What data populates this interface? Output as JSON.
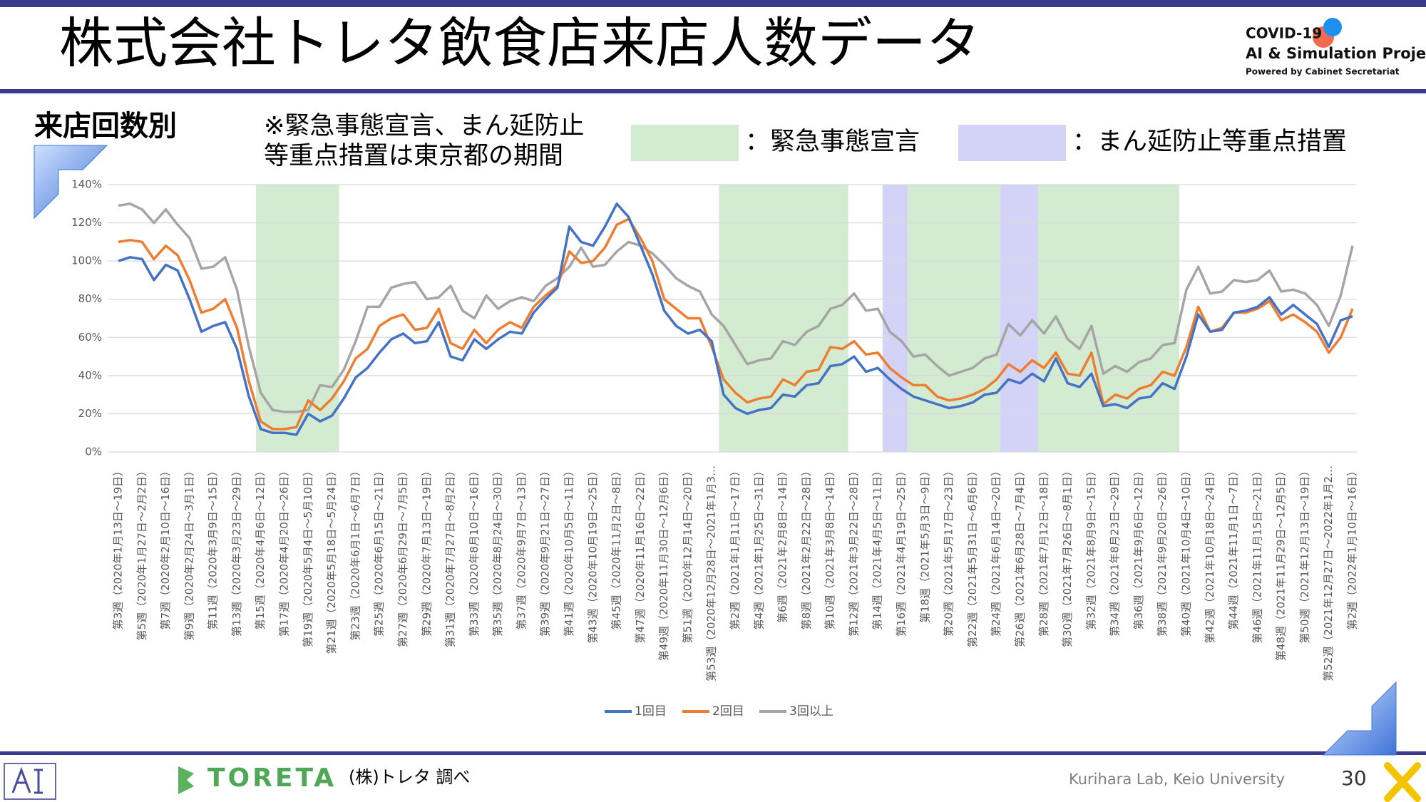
{
  "header": {
    "title": "株式会社トレタ飲食店来店人数データ",
    "logo_lines": [
      "COVID-19",
      "AI & Simulation Project",
      "Powered by Cabinet Secretariat"
    ]
  },
  "section_label": "来店回数別",
  "note_lines": [
    "※緊急事態宣言、まん延防止",
    "等重点措置は東京都の期間"
  ],
  "footer": {
    "brand": "TORETA",
    "source": "(株)トレタ 調べ",
    "lab": "Kurihara Lab, Keio University",
    "page": "30"
  },
  "chart_data": {
    "type": "line",
    "categories": [
      "第3週（2020年1月13日～19日）",
      null,
      "第5週（2020年1月27日～2月2日）",
      null,
      "第7週（2020年2月10日～16日）",
      null,
      "第9週（2020年2月24日～3月1日）",
      null,
      "第11週（2020年3月9日～15日）",
      null,
      "第13週（2020年3月23日～29日）",
      null,
      "第15週（2020年4月6日～12日）",
      null,
      "第17週（2020年4月20日～26日）",
      null,
      "第19週（2020年5月4日～5月10日）",
      null,
      "第21週（2020年5月18日～5月24日）",
      null,
      "第23週（2020年6月1日～6月7日）",
      null,
      "第25週（2020年6月15日～21日）",
      null,
      "第27週（2020年6月29日～7月5日）",
      null,
      "第29週（2020年7月13日～19日）",
      null,
      "第31週（2020年7月27日～8月2日）",
      null,
      "第33週（2020年8月10日～16日）",
      null,
      "第35週（2020年8月24日～30日）",
      null,
      "第37週（2020年9月7日～13日）",
      null,
      "第39週（2020年9月21日～27日）",
      null,
      "第41週（2020年10月5日～11日）",
      null,
      "第43週（2020年10月19日～25日）",
      null,
      "第45週（2020年11月2日～8日）",
      null,
      "第47週（2020年11月16日～22日）",
      null,
      "第49週（2020年11月30日～12月6日）",
      null,
      "第51週（2020年12月14日～20日）",
      null,
      "第53週（2020年12月28日～2021年1月3…",
      null,
      "第2週（2021年1月11日～17日）",
      null,
      "第4週（2021年1月25日～31日）",
      null,
      "第6週（2021年2月8日～14日）",
      null,
      "第8週（2021年2月22日～28日）",
      null,
      "第10週（2021年3月8日～14日）",
      null,
      "第12週（2021年3月22日～28日）",
      null,
      "第14週（2021年4月5日～11日）",
      null,
      "第16週（2021年4月19日～25日）",
      null,
      "第18週（2021年5月3日～9日）",
      null,
      "第20週（2021年5月17日～23日）",
      null,
      "第22週（2021年5月31日～6月6日）",
      null,
      "第24週（2021年6月14日～20日）",
      null,
      "第26週（2021年6月28日～7月4日）",
      null,
      "第28週（2021年7月12日～18日）",
      null,
      "第30週（2021年7月26日～8月1日）",
      null,
      "第32週（2021年8月9日～15日）",
      null,
      "第34週（2021年8月23日～29日）",
      null,
      "第36週（2021年9月6日～12日）",
      null,
      "第38週（2021年9月20日～26日）",
      null,
      "第40週（2021年10月4日～10日）",
      null,
      "第42週（2021年10月18日～24日）",
      null,
      "第44週（2021年11月1日～7日）",
      null,
      "第46週（2021年11月15日～21日）",
      null,
      "第48週（2021年11月29日～12月5日）",
      null,
      "第50週（2021年12月13日～19日）",
      null,
      "第52週（2021年12月27日～2022年1月2…",
      null,
      "第2週（2022年1月10日～16日）"
    ],
    "series": [
      {
        "name": "1回目",
        "color": "#4472c4",
        "values": [
          100,
          102,
          101,
          90,
          98,
          95,
          80,
          63,
          66,
          68,
          54,
          29,
          12,
          10,
          10,
          9,
          20,
          16,
          19,
          28,
          39,
          44,
          52,
          59,
          62,
          57,
          58,
          68,
          50,
          48,
          59,
          54,
          59,
          63,
          62,
          73,
          80,
          86,
          118,
          110,
          108,
          118,
          130,
          123,
          108,
          93,
          74,
          66,
          62,
          64,
          58,
          30,
          23,
          20,
          22,
          23,
          30,
          29,
          35,
          36,
          45,
          46,
          50,
          42,
          44,
          38,
          33,
          29,
          27,
          25,
          23,
          24,
          26,
          30,
          31,
          38,
          36,
          41,
          37,
          49,
          36,
          34,
          41,
          24,
          25,
          23,
          28,
          29,
          36,
          33,
          50,
          72,
          63,
          64,
          73,
          74,
          76,
          81,
          72,
          77,
          72,
          67,
          55,
          69,
          71
        ]
      },
      {
        "name": "2回目",
        "color": "#ed7d31",
        "values": [
          110,
          111,
          110,
          101,
          108,
          103,
          90,
          73,
          75,
          80,
          65,
          37,
          16,
          12,
          12,
          13,
          27,
          22,
          28,
          37,
          49,
          54,
          66,
          70,
          72,
          64,
          65,
          75,
          57,
          54,
          64,
          57,
          64,
          68,
          65,
          76,
          82,
          87,
          105,
          99,
          100,
          107,
          119,
          122,
          112,
          100,
          80,
          75,
          70,
          70,
          55,
          38,
          31,
          26,
          28,
          29,
          38,
          35,
          42,
          43,
          55,
          54,
          58,
          51,
          52,
          44,
          39,
          35,
          35,
          29,
          27,
          28,
          30,
          33,
          38,
          46,
          42,
          48,
          44,
          52,
          41,
          40,
          52,
          25,
          30,
          28,
          33,
          35,
          42,
          40,
          55,
          76,
          63,
          65,
          73,
          73,
          75,
          79,
          69,
          72,
          68,
          63,
          52,
          60,
          75
        ]
      },
      {
        "name": "3回以上",
        "color": "#a5a5a5",
        "values": [
          129,
          130,
          127,
          120,
          127,
          119,
          112,
          96,
          97,
          102,
          85,
          55,
          31,
          22,
          21,
          21,
          22,
          35,
          34,
          43,
          58,
          76,
          76,
          86,
          88,
          89,
          80,
          81,
          87,
          74,
          70,
          82,
          75,
          79,
          81,
          79,
          87,
          91,
          97,
          107,
          97,
          98,
          105,
          110,
          108,
          104,
          98,
          91,
          87,
          84,
          72,
          66,
          56,
          46,
          48,
          49,
          58,
          56,
          63,
          66,
          75,
          77,
          83,
          74,
          75,
          63,
          58,
          50,
          51,
          45,
          40,
          42,
          44,
          49,
          51,
          67,
          61,
          69,
          62,
          71,
          59,
          54,
          66,
          41,
          45,
          42,
          47,
          49,
          56,
          57,
          85,
          97,
          83,
          84,
          90,
          89,
          90,
          95,
          84,
          85,
          83,
          77,
          66,
          82,
          108
        ]
      }
    ],
    "ylim": [
      0,
      140
    ],
    "yticks": [
      {
        "value": 0,
        "label": "0%"
      },
      {
        "value": 20,
        "label": "20%"
      },
      {
        "value": 40,
        "label": "40%"
      },
      {
        "value": 60,
        "label": "60%"
      },
      {
        "value": 80,
        "label": "80%"
      },
      {
        "value": 100,
        "label": "100%"
      },
      {
        "value": 120,
        "label": "120%"
      },
      {
        "value": 140,
        "label": "140%"
      }
    ],
    "grid": true,
    "shading": [
      {
        "label": "：緊急事態宣言",
        "color": "#d3ecd1",
        "periods": [
          [
            11.6,
            18.6
          ],
          [
            50.6,
            61.5
          ],
          [
            66.5,
            74.3
          ],
          [
            77.5,
            89.4
          ]
        ]
      },
      {
        "label": "：まん延防止等重点措置",
        "color": "#d3d3f8",
        "periods": [
          [
            64.4,
            66.5
          ],
          [
            74.3,
            77.5
          ]
        ]
      }
    ]
  }
}
